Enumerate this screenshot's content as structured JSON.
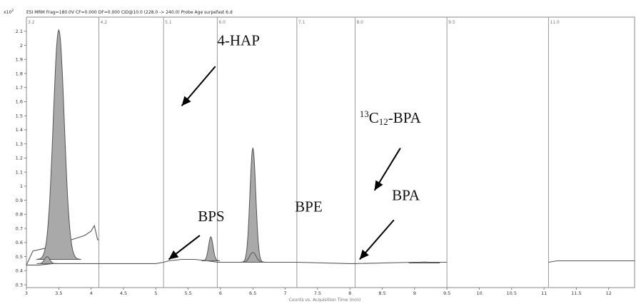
{
  "chart_data": {
    "type": "line",
    "header": "ESI MRM Frag=180.0V CF=0.000 DF=0.000 CID@10.0 (228.0 -> 240.0) Probe Age surpefast 6.d",
    "y_exponent": "x10",
    "y_exponent_power": "2",
    "xlabel": "Counts vs. Acquisition Time (min)",
    "xlim": [
      3.0,
      12.4
    ],
    "ylim": [
      0.28,
      2.2
    ],
    "x_ticks": [
      "3",
      "3.5",
      "4",
      "4.5",
      "5",
      "5.5",
      "6",
      "6.5",
      "7",
      "7.5",
      "8",
      "8.5",
      "9",
      "9.5",
      "10",
      "10.5",
      "11",
      "11.5",
      "12"
    ],
    "y_ticks": [
      "0.3",
      "0.4",
      "0.5",
      "0.6",
      "0.7",
      "0.8",
      "0.9",
      "1",
      "1.1",
      "1.2",
      "1.3",
      "1.4",
      "1.5",
      "1.6",
      "1.7",
      "1.8",
      "1.9",
      "2",
      "2.1"
    ],
    "segment_labels": [
      "3.2",
      "4.2",
      "5.1",
      "6.0",
      "7.1",
      "8.0",
      "9.5",
      "11.0"
    ],
    "segment_boundaries": [
      4.12,
      5.12,
      5.95,
      7.18,
      8.08,
      9.5,
      11.07
    ],
    "series": [
      {
        "color": "#555555",
        "points": [
          [
            3.0,
            0.44
          ],
          [
            3.2,
            0.44
          ],
          [
            3.4,
            0.45
          ],
          [
            3.6,
            0.45
          ],
          [
            3.8,
            0.45
          ],
          [
            4.0,
            0.45
          ],
          [
            4.1,
            0.45
          ],
          [
            4.12,
            0.45
          ],
          [
            4.5,
            0.45
          ],
          [
            5.0,
            0.45
          ],
          [
            5.12,
            0.46
          ],
          [
            5.2,
            0.47
          ],
          [
            5.4,
            0.48
          ],
          [
            5.6,
            0.48
          ],
          [
            5.8,
            0.47
          ],
          [
            5.95,
            0.46
          ],
          [
            6.1,
            0.46
          ],
          [
            6.4,
            0.46
          ],
          [
            6.7,
            0.46
          ],
          [
            7.0,
            0.46
          ],
          [
            7.18,
            0.46
          ],
          [
            8.0,
            0.45
          ],
          [
            8.08,
            0.45
          ],
          [
            9.0,
            0.46
          ],
          [
            9.5,
            0.46
          ]
        ]
      },
      {
        "color": "#555555",
        "points": [
          [
            3.0,
            0.44
          ],
          [
            3.1,
            0.54
          ],
          [
            3.3,
            0.56
          ],
          [
            3.5,
            0.57
          ],
          [
            3.7,
            0.62
          ],
          [
            3.9,
            0.65
          ],
          [
            4.0,
            0.68
          ],
          [
            4.05,
            0.72
          ],
          [
            4.1,
            0.62
          ],
          [
            4.12,
            0.62
          ]
        ]
      },
      {
        "color": "#555555",
        "points": [
          [
            11.07,
            0.46
          ],
          [
            11.2,
            0.47
          ],
          [
            11.5,
            0.47
          ],
          [
            12.0,
            0.47
          ],
          [
            12.4,
            0.47
          ]
        ]
      }
    ],
    "peaks": [
      {
        "name": "",
        "rt": 3.5,
        "height": 2.11,
        "width": 0.085,
        "base": 0.48,
        "filled": true
      },
      {
        "name": "",
        "rt": 3.32,
        "height": 0.5,
        "width": 0.04,
        "base": 0.45,
        "filled": true
      },
      {
        "name": "",
        "rt": 5.85,
        "height": 0.64,
        "width": 0.035,
        "base": 0.47,
        "filled": true
      },
      {
        "name": "",
        "rt": 6.5,
        "height": 1.27,
        "width": 0.045,
        "base": 0.46,
        "filled": true
      },
      {
        "name": "",
        "rt": 6.5,
        "height": 0.53,
        "width": 0.05,
        "base": 0.46,
        "filled": true
      },
      {
        "name": "",
        "rt": 9.15,
        "height": 0.462,
        "width": 0.06,
        "base": 0.455,
        "filled": true
      }
    ],
    "annotations": [
      {
        "text": "4-HAP",
        "sup": "",
        "sub": "",
        "suffix": "",
        "label_x": 5.95,
        "label_y": 2.0,
        "arrow_from": [
          5.92,
          1.85
        ],
        "arrow_to": [
          5.4,
          1.57
        ]
      },
      {
        "text": "",
        "sup": "13",
        "sub": "12",
        "prefix": "C",
        "suffix": "-BPA",
        "label_x": 8.15,
        "label_y": 1.45,
        "arrow_from": [
          8.78,
          1.27
        ],
        "arrow_to": [
          8.38,
          0.97
        ]
      },
      {
        "text": "BPS",
        "sup": "",
        "sub": "",
        "suffix": "",
        "label_x": 5.65,
        "label_y": 0.75,
        "arrow_from": [
          5.68,
          0.65
        ],
        "arrow_to": [
          5.2,
          0.48
        ]
      },
      {
        "text": "BPE",
        "sup": "",
        "sub": "",
        "suffix": "",
        "label_x": 7.15,
        "label_y": 0.82,
        "arrow_from": null,
        "arrow_to": null
      },
      {
        "text": "BPA",
        "sup": "",
        "sub": "",
        "suffix": "",
        "label_x": 8.65,
        "label_y": 0.9,
        "arrow_from": [
          8.68,
          0.76
        ],
        "arrow_to": [
          8.15,
          0.48
        ]
      }
    ]
  }
}
